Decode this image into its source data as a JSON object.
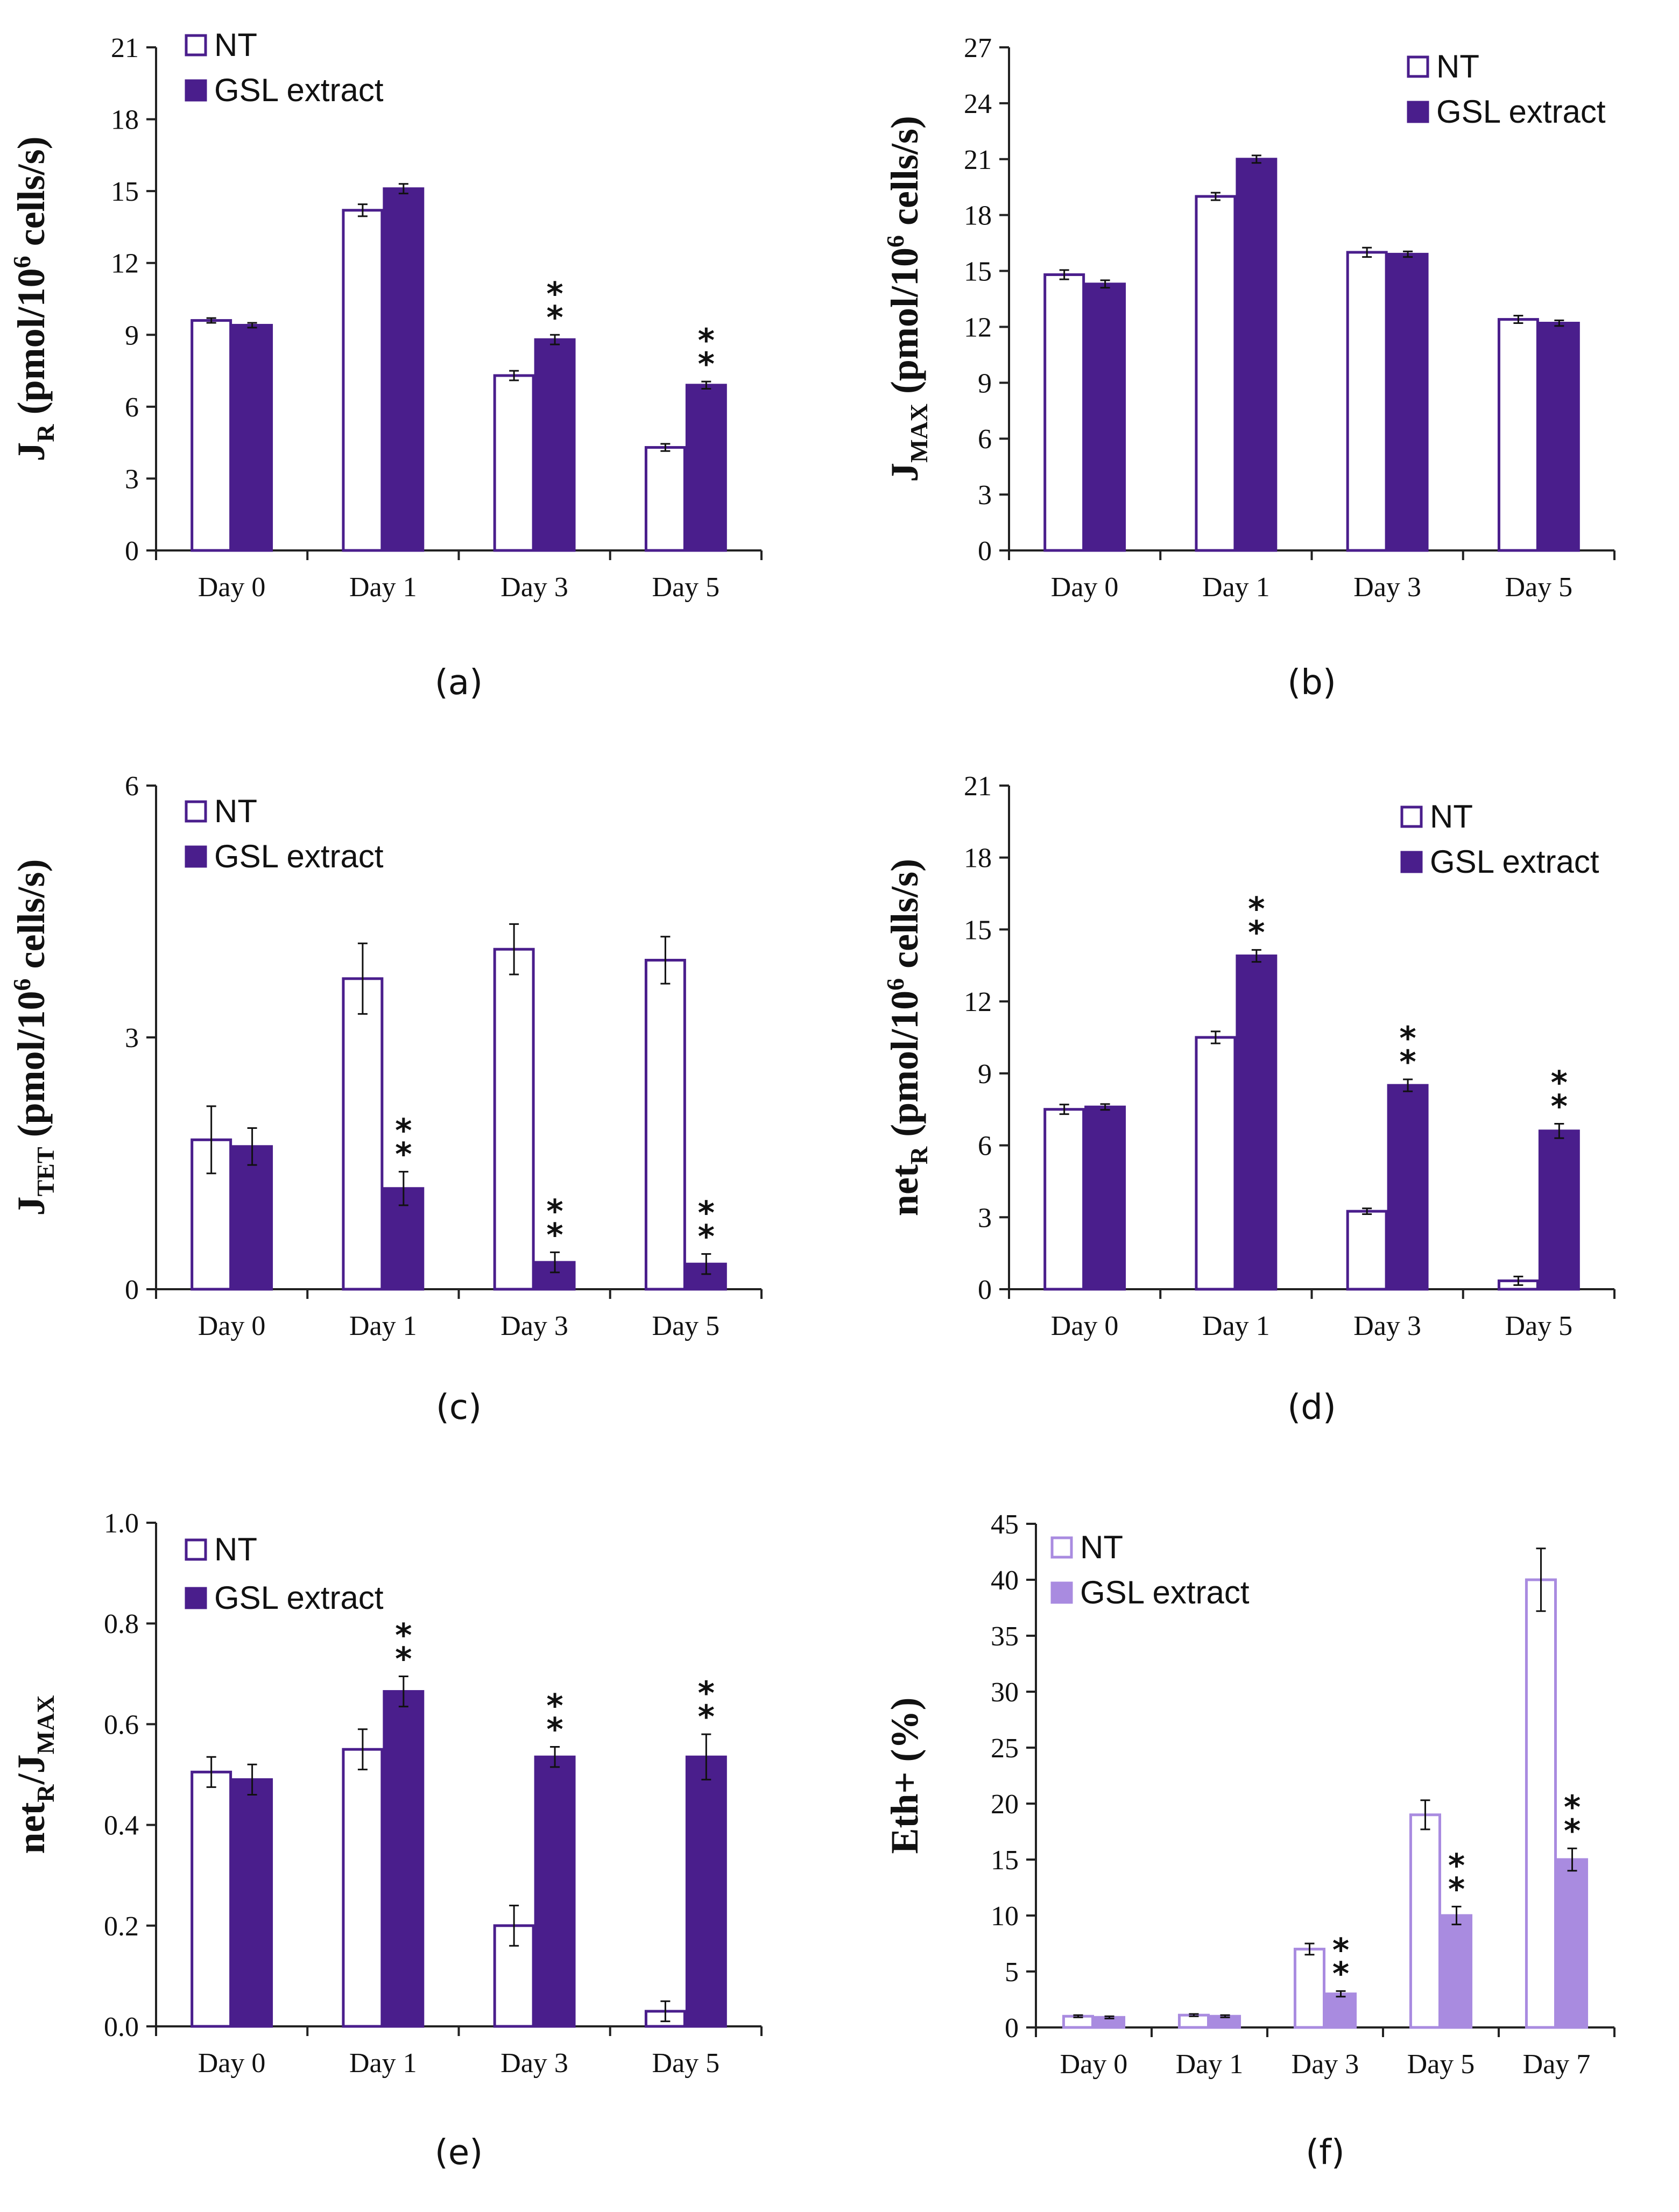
{
  "colors": {
    "dark_fill": "#4A1E8C",
    "dark_stroke": "#4A1E8C",
    "light_fill": "#A98BE0",
    "light_stroke": "#A98BE0",
    "axis": "#222222",
    "errorbar": "#111111"
  },
  "chart_data": [
    {
      "id": "a",
      "type": "bar",
      "caption": "(a)",
      "ylabel": "J",
      "ylabel_sub": "R",
      "ylabel_rest": " (pmol/10",
      "ylabel_sup": "6",
      "ylabel_tail": " cells/s)",
      "ylim": [
        0,
        21
      ],
      "yticks": [
        0,
        3,
        6,
        9,
        12,
        15,
        18,
        21
      ],
      "ytick_labels": [
        "0",
        "3",
        "6",
        "9",
        "12",
        "15",
        "18",
        "21"
      ],
      "categories": [
        "Day 0",
        "Day 1",
        "Day 3",
        "Day 5"
      ],
      "palette": "dark",
      "legend_position": "top-left",
      "series": [
        {
          "name": "NT",
          "values": [
            9.6,
            14.2,
            7.3,
            4.3
          ],
          "errors": [
            0.1,
            0.25,
            0.2,
            0.15
          ],
          "stars": [
            false,
            false,
            false,
            false
          ]
        },
        {
          "name": "GSL extract",
          "values": [
            9.4,
            15.1,
            8.8,
            6.9
          ],
          "errors": [
            0.1,
            0.2,
            0.2,
            0.15
          ],
          "stars": [
            false,
            false,
            true,
            true
          ]
        }
      ]
    },
    {
      "id": "b",
      "type": "bar",
      "caption": "(b)",
      "ylabel": "J",
      "ylabel_sub": "MAX",
      "ylabel_rest": " (pmol/10",
      "ylabel_sup": "6",
      "ylabel_tail": " cells/s)",
      "ylim": [
        0,
        27
      ],
      "yticks": [
        0,
        3,
        6,
        9,
        12,
        15,
        18,
        21,
        24,
        27
      ],
      "ytick_labels": [
        "0",
        "3",
        "6",
        "9",
        "12",
        "15",
        "18",
        "21",
        "24",
        "27"
      ],
      "categories": [
        "Day 0",
        "Day 1",
        "Day 3",
        "Day 5"
      ],
      "palette": "dark",
      "legend_position": "top-right",
      "series": [
        {
          "name": "NT",
          "values": [
            14.8,
            19.0,
            16.0,
            12.4
          ],
          "errors": [
            0.25,
            0.2,
            0.25,
            0.2
          ],
          "stars": [
            false,
            false,
            false,
            false
          ]
        },
        {
          "name": "GSL extract",
          "values": [
            14.3,
            21.0,
            15.9,
            12.2
          ],
          "errors": [
            0.2,
            0.2,
            0.15,
            0.15
          ],
          "stars": [
            false,
            false,
            false,
            false
          ]
        }
      ]
    },
    {
      "id": "c",
      "type": "bar",
      "caption": "(c)",
      "ylabel": "J",
      "ylabel_sub": "TET",
      "ylabel_rest": " (pmol/10",
      "ylabel_sup": "6",
      "ylabel_tail": " cells/s)",
      "ylim": [
        0,
        6
      ],
      "yticks": [
        0,
        3,
        6
      ],
      "ytick_labels": [
        "0",
        "3",
        "6"
      ],
      "categories": [
        "Day 0",
        "Day 1",
        "Day 3",
        "Day 5"
      ],
      "palette": "dark",
      "legend_position": "top-left",
      "series": [
        {
          "name": "NT",
          "values": [
            1.78,
            3.7,
            4.05,
            3.92
          ],
          "errors": [
            0.4,
            0.42,
            0.3,
            0.28
          ],
          "stars": [
            false,
            false,
            false,
            false
          ]
        },
        {
          "name": "GSL extract",
          "values": [
            1.7,
            1.2,
            0.32,
            0.3
          ],
          "errors": [
            0.22,
            0.2,
            0.12,
            0.12
          ],
          "stars": [
            false,
            true,
            true,
            true
          ]
        }
      ]
    },
    {
      "id": "d",
      "type": "bar",
      "caption": "(d)",
      "ylabel": "net",
      "ylabel_sub": "R",
      "ylabel_rest": " (pmol/10",
      "ylabel_sup": "6",
      "ylabel_tail": " cells/s)",
      "ylim": [
        0,
        21
      ],
      "yticks": [
        0,
        3,
        6,
        9,
        12,
        15,
        18,
        21
      ],
      "ytick_labels": [
        "0",
        "3",
        "6",
        "9",
        "12",
        "15",
        "18",
        "21"
      ],
      "categories": [
        "Day 0",
        "Day 1",
        "Day 3",
        "Day 5"
      ],
      "palette": "dark",
      "legend_position": "top-right",
      "series": [
        {
          "name": "NT",
          "values": [
            7.5,
            10.5,
            3.25,
            0.35
          ],
          "errors": [
            0.2,
            0.25,
            0.12,
            0.18
          ],
          "stars": [
            false,
            false,
            false,
            false
          ]
        },
        {
          "name": "GSL extract",
          "values": [
            7.6,
            13.9,
            8.5,
            6.6
          ],
          "errors": [
            0.12,
            0.25,
            0.25,
            0.3
          ],
          "stars": [
            false,
            true,
            true,
            true
          ]
        }
      ]
    },
    {
      "id": "e",
      "type": "bar",
      "caption": "(e)",
      "ylabel": "net",
      "ylabel_sub": "R",
      "ylabel_rest": "/J",
      "ylabel_sub2": "MAX",
      "ylim": [
        0,
        1.0
      ],
      "yticks": [
        0,
        0.2,
        0.4,
        0.6,
        0.8,
        1.0
      ],
      "ytick_labels": [
        "0.0",
        "0.2",
        "0.4",
        "0.6",
        "0.8",
        "1.0"
      ],
      "categories": [
        "Day 0",
        "Day 1",
        "Day 3",
        "Day 5"
      ],
      "palette": "dark",
      "legend_position": "top-left",
      "series": [
        {
          "name": "NT",
          "values": [
            0.505,
            0.55,
            0.2,
            0.03
          ],
          "errors": [
            0.03,
            0.04,
            0.04,
            0.02
          ],
          "stars": [
            false,
            false,
            false,
            false
          ]
        },
        {
          "name": "GSL extract",
          "values": [
            0.49,
            0.665,
            0.535,
            0.535
          ],
          "errors": [
            0.03,
            0.03,
            0.02,
            0.045
          ],
          "stars": [
            false,
            true,
            true,
            true
          ]
        }
      ]
    },
    {
      "id": "f",
      "type": "bar",
      "caption": "(f)",
      "ylabel": "Eth+ (%)",
      "ylim": [
        0,
        45
      ],
      "yticks": [
        0,
        5,
        10,
        15,
        20,
        25,
        30,
        35,
        40,
        45
      ],
      "ytick_labels": [
        "0",
        "5",
        "10",
        "15",
        "20",
        "25",
        "30",
        "35",
        "40",
        "45"
      ],
      "categories": [
        "Day 0",
        "Day 1",
        "Day 3",
        "Day 5",
        "Day 7"
      ],
      "palette": "light",
      "legend_position": "top-left",
      "series": [
        {
          "name": "NT",
          "values": [
            1.0,
            1.1,
            7.0,
            19.0,
            40.0
          ],
          "errors": [
            0.1,
            0.1,
            0.5,
            1.3,
            2.8
          ],
          "stars": [
            false,
            false,
            false,
            false,
            false
          ]
        },
        {
          "name": "GSL extract",
          "values": [
            0.9,
            1.0,
            3.0,
            10.0,
            15.0
          ],
          "errors": [
            0.1,
            0.1,
            0.25,
            0.8,
            1.0
          ],
          "stars": [
            false,
            false,
            true,
            true,
            true
          ]
        }
      ]
    }
  ]
}
